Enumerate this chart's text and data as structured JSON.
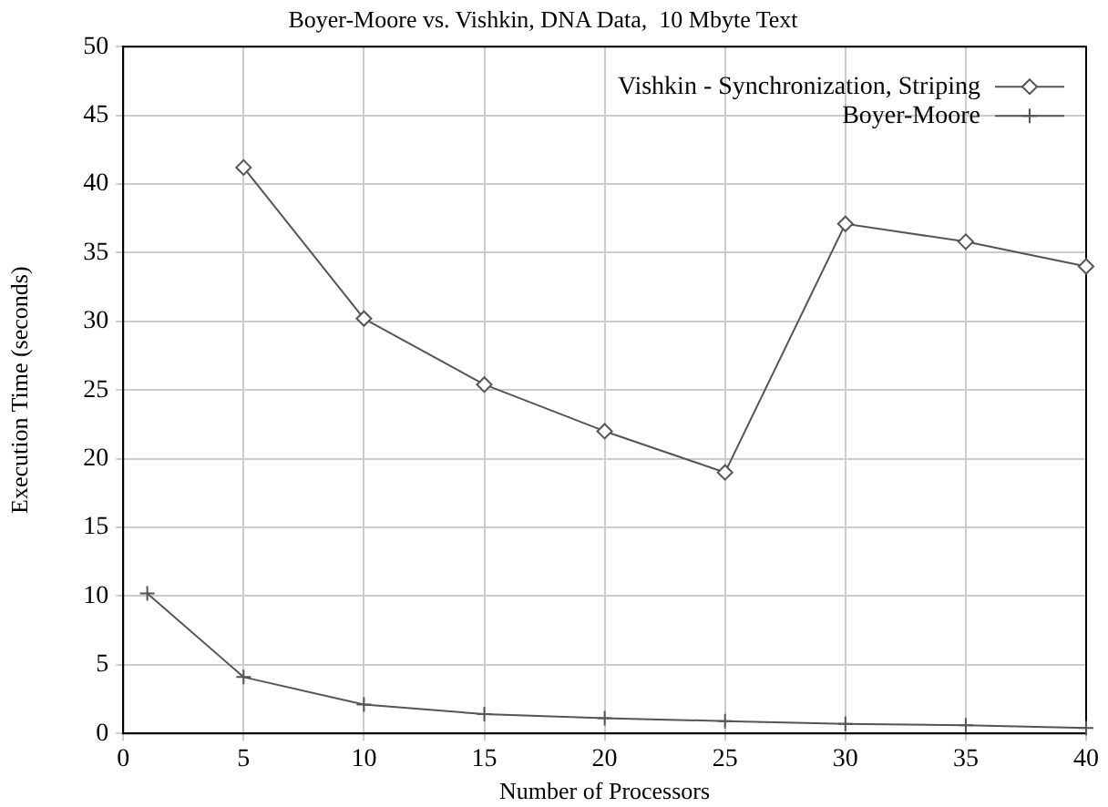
{
  "chart_data": {
    "type": "line",
    "title": "Boyer-Moore vs. Vishkin, DNA Data,  10 Mbyte Text",
    "xlabel": "Number of Processors",
    "ylabel": "Execution Time (seconds)",
    "x": [
      1,
      5,
      10,
      15,
      20,
      25,
      30,
      35,
      40
    ],
    "series": [
      {
        "name": "Vishkin - Synchronization, Striping",
        "color": "#555555",
        "marker": "diamond",
        "values": [
          null,
          41.2,
          30.2,
          25.4,
          22,
          19,
          37.1,
          35.8,
          34
        ]
      },
      {
        "name": "Boyer-Moore",
        "color": "#555555",
        "marker": "cross",
        "values": [
          10.2,
          4.1,
          2.1,
          1.4,
          1.1,
          0.9,
          0.7,
          0.6,
          0.4
        ]
      }
    ],
    "xlim": [
      0,
      40
    ],
    "xticks": [
      0,
      5,
      10,
      15,
      20,
      25,
      30,
      35,
      40
    ],
    "ylim": [
      0,
      50
    ],
    "yticks": [
      0,
      5,
      10,
      15,
      20,
      25,
      30,
      35,
      40,
      45,
      50
    ],
    "grid": true,
    "legend": "top right",
    "line_style": "solid"
  }
}
